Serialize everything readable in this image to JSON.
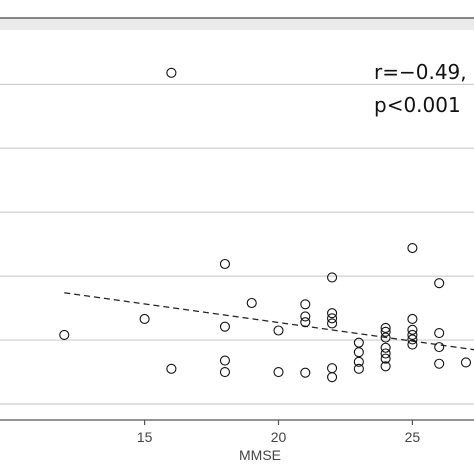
{
  "chart_data": {
    "type": "scatter",
    "title": "",
    "xlabel": "MMSE",
    "ylabel": "",
    "xlim": [
      9.6,
      27.3
    ],
    "ylim": [
      -7.5,
      53.5
    ],
    "x_ticks": [
      15,
      20,
      25
    ],
    "grid": true,
    "legend": "none",
    "annotation": {
      "line1": "r=−0.49,",
      "line2": "p<0.001"
    },
    "trend_line": {
      "style": "dashed",
      "x": [
        12,
        27.3
      ],
      "y": [
        12.4,
        3.5
      ]
    },
    "points": [
      {
        "x": 12,
        "y": 5.8
      },
      {
        "x": 15,
        "y": 8.3
      },
      {
        "x": 16,
        "y": 46.8
      },
      {
        "x": 16,
        "y": 0.5
      },
      {
        "x": 18,
        "y": 16.9
      },
      {
        "x": 18,
        "y": 7.1
      },
      {
        "x": 18,
        "y": 1.8
      },
      {
        "x": 18,
        "y": 0.0
      },
      {
        "x": 19,
        "y": 10.8
      },
      {
        "x": 20,
        "y": 6.5
      },
      {
        "x": 20,
        "y": 0.0
      },
      {
        "x": 21,
        "y": 10.6
      },
      {
        "x": 21,
        "y": 8.7
      },
      {
        "x": 21,
        "y": 7.8
      },
      {
        "x": 21,
        "y": -0.1
      },
      {
        "x": 22,
        "y": 14.8
      },
      {
        "x": 22,
        "y": 9.2
      },
      {
        "x": 22,
        "y": 8.4
      },
      {
        "x": 22,
        "y": 7.6
      },
      {
        "x": 22,
        "y": 0.6
      },
      {
        "x": 22,
        "y": -0.8
      },
      {
        "x": 23,
        "y": 4.6
      },
      {
        "x": 23,
        "y": 3.1
      },
      {
        "x": 23,
        "y": 1.6
      },
      {
        "x": 23,
        "y": 0.5
      },
      {
        "x": 24,
        "y": 6.9
      },
      {
        "x": 24,
        "y": 6.3
      },
      {
        "x": 24,
        "y": 5.4
      },
      {
        "x": 24,
        "y": 3.8
      },
      {
        "x": 24,
        "y": 2.9
      },
      {
        "x": 24,
        "y": 2.1
      },
      {
        "x": 24,
        "y": 0.9
      },
      {
        "x": 25,
        "y": 19.4
      },
      {
        "x": 25,
        "y": 8.3
      },
      {
        "x": 25,
        "y": 6.6
      },
      {
        "x": 25,
        "y": 5.8
      },
      {
        "x": 25,
        "y": 5.1
      },
      {
        "x": 25,
        "y": 4.3
      },
      {
        "x": 26,
        "y": 13.9
      },
      {
        "x": 26,
        "y": 6.1
      },
      {
        "x": 26,
        "y": 3.9
      },
      {
        "x": 26,
        "y": 1.3
      },
      {
        "x": 27,
        "y": 1.5
      }
    ]
  }
}
